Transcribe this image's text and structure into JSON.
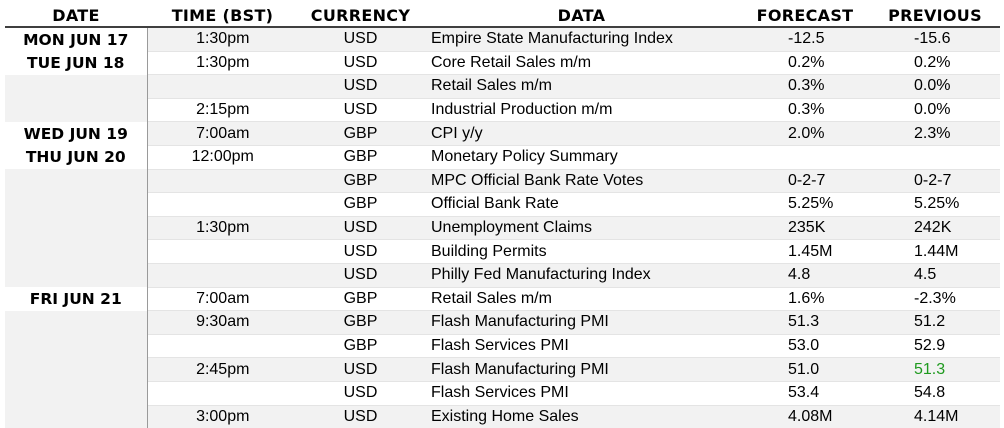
{
  "headers": {
    "date": "DATE",
    "time": "TIME (BST)",
    "currency": "CURRENCY",
    "data": "DATA",
    "forecast": "FORECAST",
    "previous": "PREVIOUS"
  },
  "rows": [
    {
      "date": "MON JUN 17",
      "time": "1:30pm",
      "currency": "USD",
      "data": "Empire State Manufacturing Index",
      "forecast": "-12.5",
      "previous": "-15.6"
    },
    {
      "date": "TUE JUN 18",
      "time": "1:30pm",
      "currency": "USD",
      "data": "Core Retail Sales m/m",
      "forecast": "0.2%",
      "previous": "0.2%"
    },
    {
      "date": "",
      "time": "",
      "currency": "USD",
      "data": "Retail Sales m/m",
      "forecast": "0.3%",
      "previous": "0.0%"
    },
    {
      "date": "",
      "time": "2:15pm",
      "currency": "USD",
      "data": "Industrial Production m/m",
      "forecast": "0.3%",
      "previous": "0.0%"
    },
    {
      "date": "WED JUN 19",
      "time": "7:00am",
      "currency": "GBP",
      "data": "CPI y/y",
      "forecast": "2.0%",
      "previous": "2.3%"
    },
    {
      "date": "THU JUN 20",
      "time": "12:00pm",
      "currency": "GBP",
      "data": "Monetary Policy Summary",
      "forecast": "",
      "previous": ""
    },
    {
      "date": "",
      "time": "",
      "currency": "GBP",
      "data": "MPC Official Bank Rate Votes",
      "forecast": "0-2-7",
      "previous": "0-2-7"
    },
    {
      "date": "",
      "time": "",
      "currency": "GBP",
      "data": "Official Bank Rate",
      "forecast": "5.25%",
      "previous": "5.25%"
    },
    {
      "date": "",
      "time": "1:30pm",
      "currency": "USD",
      "data": "Unemployment Claims",
      "forecast": "235K",
      "previous": "242K"
    },
    {
      "date": "",
      "time": "",
      "currency": "USD",
      "data": "Building Permits",
      "forecast": "1.45M",
      "previous": "1.44M"
    },
    {
      "date": "",
      "time": "",
      "currency": "USD",
      "data": "Philly Fed Manufacturing Index",
      "forecast": "4.8",
      "previous": "4.5"
    },
    {
      "date": "FRI JUN 21",
      "time": "7:00am",
      "currency": "GBP",
      "data": "Retail Sales m/m",
      "forecast": "1.6%",
      "previous": "-2.3%"
    },
    {
      "date": "",
      "time": "9:30am",
      "currency": "GBP",
      "data": "Flash Manufacturing PMI",
      "forecast": "51.3",
      "previous": "51.2"
    },
    {
      "date": "",
      "time": "",
      "currency": "GBP",
      "data": "Flash Services PMI",
      "forecast": "53.0",
      "previous": "52.9"
    },
    {
      "date": "",
      "time": "2:45pm",
      "currency": "USD",
      "data": "Flash Manufacturing PMI",
      "forecast": "51.0",
      "previous": "51.3",
      "previous_color": "#1f9a1f"
    },
    {
      "date": "",
      "time": "",
      "currency": "USD",
      "data": "Flash Services PMI",
      "forecast": "53.4",
      "previous": "54.8"
    },
    {
      "date": "",
      "time": "3:00pm",
      "currency": "USD",
      "data": "Existing Home Sales",
      "forecast": "4.08M",
      "previous": "4.14M"
    }
  ]
}
